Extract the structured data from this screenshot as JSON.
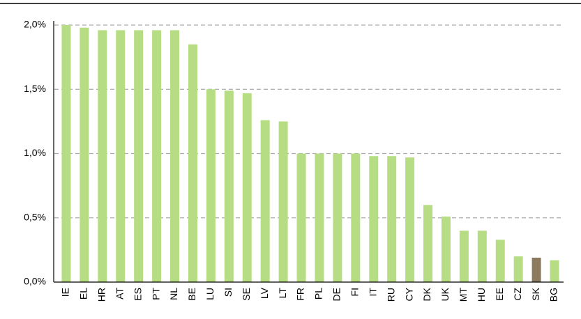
{
  "chart_data": {
    "type": "bar",
    "categories": [
      "IE",
      "EL",
      "HR",
      "AT",
      "ES",
      "PT",
      "NL",
      "BE",
      "LU",
      "SI",
      "SE",
      "LV",
      "LT",
      "FR",
      "PL",
      "DE",
      "FI",
      "IT",
      "RU",
      "CY",
      "DK",
      "UK",
      "MT",
      "HU",
      "EE",
      "CZ",
      "SK",
      "BG"
    ],
    "values": [
      2.0,
      1.98,
      1.96,
      1.96,
      1.96,
      1.96,
      1.96,
      1.85,
      1.5,
      1.49,
      1.47,
      1.26,
      1.25,
      1.0,
      1.0,
      1.0,
      1.0,
      0.98,
      0.98,
      0.97,
      0.6,
      0.51,
      0.4,
      0.4,
      0.33,
      0.2,
      0.19,
      0.17
    ],
    "colors": [
      "#b7dd84",
      "#b7dd84",
      "#b7dd84",
      "#b7dd84",
      "#b7dd84",
      "#b7dd84",
      "#b7dd84",
      "#b7dd84",
      "#b7dd84",
      "#b7dd84",
      "#b7dd84",
      "#b7dd84",
      "#b7dd84",
      "#b7dd84",
      "#b7dd84",
      "#b7dd84",
      "#b7dd84",
      "#b7dd84",
      "#b7dd84",
      "#b7dd84",
      "#b7dd84",
      "#b7dd84",
      "#b7dd84",
      "#b7dd84",
      "#b7dd84",
      "#b7dd84",
      "#8b7a5e",
      "#b7dd84"
    ],
    "ylim": [
      0,
      2.0
    ],
    "yticks": [
      {
        "value": 0,
        "label": "0,0%"
      },
      {
        "value": 0.5,
        "label": "0,5%"
      },
      {
        "value": 1.0,
        "label": "1,0%"
      },
      {
        "value": 1.5,
        "label": "1,5%"
      },
      {
        "value": 2.0,
        "label": "2,0%"
      }
    ],
    "grid": true
  }
}
